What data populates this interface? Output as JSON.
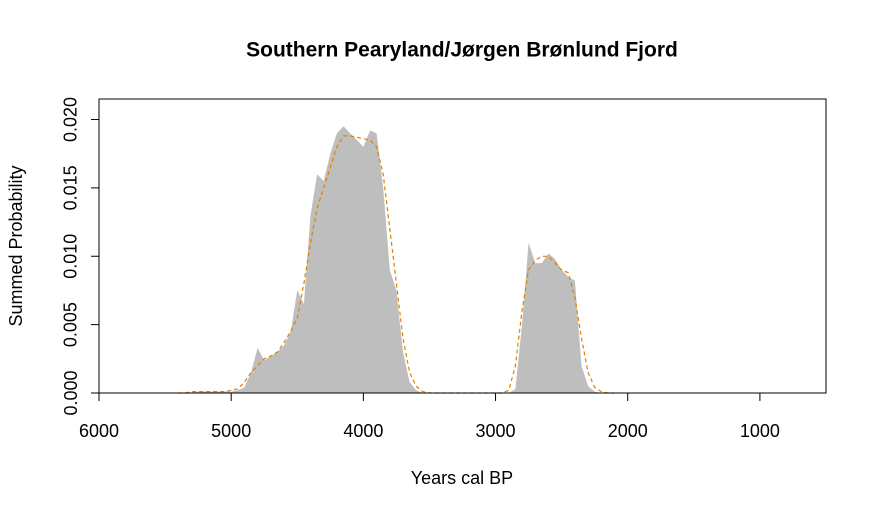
{
  "chart_data": {
    "type": "area",
    "title": "Southern Pearyland/Jørgen Brønlund Fjord",
    "xlabel": "Years cal BP",
    "ylabel": "Summed Probability",
    "x": [
      5400,
      5350,
      5300,
      5250,
      5200,
      5150,
      5100,
      5050,
      5000,
      4950,
      4900,
      4850,
      4800,
      4750,
      4700,
      4650,
      4600,
      4550,
      4500,
      4450,
      4400,
      4350,
      4300,
      4250,
      4200,
      4150,
      4100,
      4050,
      4000,
      3950,
      3900,
      3850,
      3800,
      3750,
      3700,
      3650,
      3600,
      3550,
      3500,
      3450,
      3400,
      3350,
      3300,
      3250,
      3200,
      3150,
      3100,
      3050,
      3000,
      2950,
      2900,
      2850,
      2800,
      2750,
      2700,
      2650,
      2600,
      2550,
      2500,
      2450,
      2400,
      2350,
      2300,
      2250,
      2200,
      2150,
      2100
    ],
    "series": [
      {
        "type": "area",
        "color": "#bebebe",
        "values": [
          0,
          0,
          0,
          0.0001,
          0.0001,
          0.0001,
          0.0001,
          0.0001,
          0.0001,
          0.0002,
          0.0004,
          0.0015,
          0.0033,
          0.0024,
          0.0027,
          0.003,
          0.0035,
          0.0045,
          0.0075,
          0.0065,
          0.013,
          0.016,
          0.0155,
          0.0175,
          0.019,
          0.0195,
          0.019,
          0.0185,
          0.018,
          0.0192,
          0.019,
          0.015,
          0.009,
          0.0075,
          0.003,
          0.0008,
          0.0002,
          0,
          0,
          0,
          0,
          0,
          0,
          0,
          0,
          0,
          0,
          0,
          0,
          0,
          0,
          0.0003,
          0.005,
          0.011,
          0.0095,
          0.0095,
          0.0102,
          0.0098,
          0.009,
          0.0085,
          0.0082,
          0.002,
          0.0005,
          0.0001,
          0,
          0,
          0
        ]
      },
      {
        "type": "line",
        "color": "#e08000",
        "dashed": true,
        "values": [
          0,
          0,
          0.0001,
          0.0001,
          0.0001,
          0.0001,
          0.0001,
          0.0001,
          0.0002,
          0.0003,
          0.0008,
          0.0015,
          0.002,
          0.0025,
          0.0027,
          0.003,
          0.0037,
          0.0045,
          0.0055,
          0.008,
          0.011,
          0.0135,
          0.015,
          0.0165,
          0.018,
          0.0188,
          0.0188,
          0.0187,
          0.0186,
          0.0185,
          0.018,
          0.016,
          0.012,
          0.008,
          0.004,
          0.0015,
          0.0005,
          0.0001,
          0,
          0,
          0,
          0,
          0,
          0,
          0,
          0,
          0,
          0,
          0,
          0,
          0.0002,
          0.002,
          0.006,
          0.009,
          0.0097,
          0.01,
          0.01,
          0.0095,
          0.009,
          0.0088,
          0.007,
          0.004,
          0.0015,
          0.0004,
          0.0001,
          0,
          0
        ]
      }
    ],
    "xlim": [
      6000,
      500
    ],
    "ylim": [
      0,
      0.0215
    ],
    "xticks": [
      6000,
      5000,
      4000,
      3000,
      2000,
      1000
    ],
    "yticks": [
      {
        "value": 0,
        "label": "0.000"
      },
      {
        "value": 0.005,
        "label": "0.005"
      },
      {
        "value": 0.01,
        "label": "0.010"
      },
      {
        "value": 0.015,
        "label": "0.015"
      },
      {
        "value": 0.02,
        "label": "0.020"
      }
    ]
  }
}
